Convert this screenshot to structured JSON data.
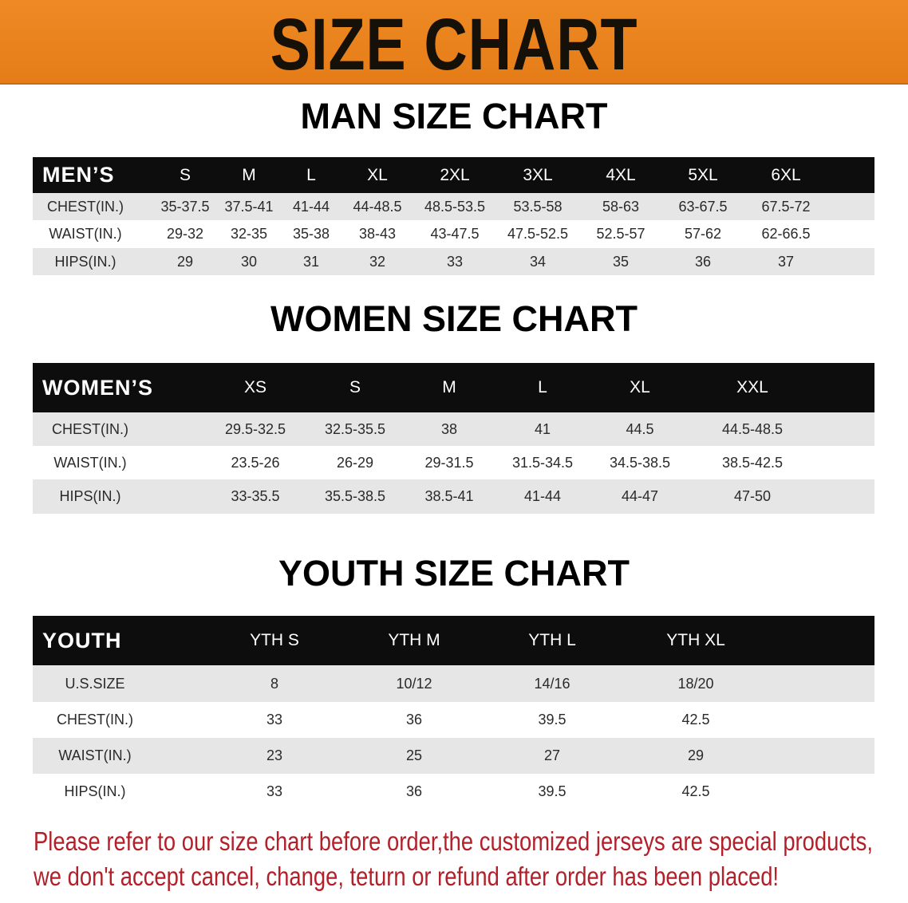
{
  "banner": {
    "title": "SIZE CHART",
    "color": "#e8821c"
  },
  "men": {
    "title": "MAN SIZE CHART",
    "header": [
      "MEN’S",
      "S",
      "M",
      "L",
      "XL",
      "2XL",
      "3XL",
      "4XL",
      "5XL",
      "6XL"
    ],
    "rows": [
      [
        "CHEST(IN.)",
        "35-37.5",
        "37.5-41",
        "41-44",
        "44-48.5",
        "48.5-53.5",
        "53.5-58",
        "58-63",
        "63-67.5",
        "67.5-72"
      ],
      [
        "WAIST(IN.)",
        "29-32",
        "32-35",
        "35-38",
        "38-43",
        "43-47.5",
        "47.5-52.5",
        "52.5-57",
        "57-62",
        "62-66.5"
      ],
      [
        "HIPS(IN.)",
        "29",
        "30",
        "31",
        "32",
        "33",
        "34",
        "35",
        "36",
        "37"
      ]
    ]
  },
  "women": {
    "title": "WOMEN SIZE CHART",
    "header": [
      "WOMEN’S",
      "XS",
      "S",
      "M",
      "L",
      "XL",
      "XXL"
    ],
    "rows": [
      [
        "CHEST(IN.)",
        "29.5-32.5",
        "32.5-35.5",
        "38",
        "41",
        "44.5",
        "44.5-48.5"
      ],
      [
        "WAIST(IN.)",
        "23.5-26",
        "26-29",
        "29-31.5",
        "31.5-34.5",
        "34.5-38.5",
        "38.5-42.5"
      ],
      [
        "HIPS(IN.)",
        "33-35.5",
        "35.5-38.5",
        "38.5-41",
        "41-44",
        "44-47",
        "47-50"
      ]
    ]
  },
  "youth": {
    "title": "YOUTH SIZE CHART",
    "header": [
      "YOUTH",
      "YTH S",
      "YTH M",
      "YTH L",
      "YTH XL"
    ],
    "rows": [
      [
        "U.S.SIZE",
        "8",
        "10/12",
        "14/16",
        "18/20"
      ],
      [
        "CHEST(IN.)",
        "33",
        "36",
        "39.5",
        "42.5"
      ],
      [
        "WAIST(IN.)",
        "23",
        "25",
        "27",
        "29"
      ],
      [
        "HIPS(IN.)",
        "33",
        "36",
        "39.5",
        "42.5"
      ]
    ]
  },
  "note": {
    "line1": "Please refer to our size chart before order,the customized jerseys are special products,",
    "line2": "we don't accept cancel, change, teturn or refund after order has been placed!",
    "color": "#b3202a"
  }
}
